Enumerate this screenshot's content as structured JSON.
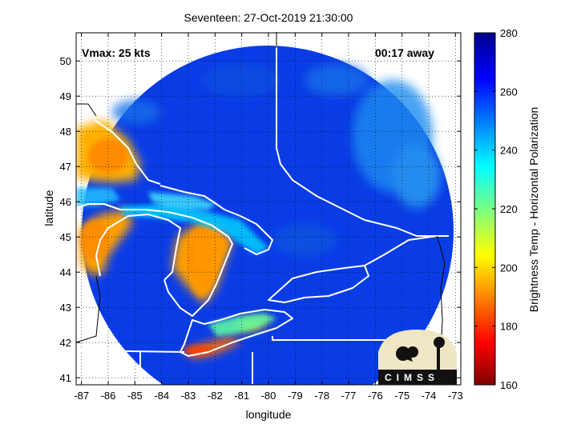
{
  "figure": {
    "title": "Seventeen: 27-Oct-2019 21:30:00",
    "xlabel": "longitude",
    "ylabel": "latitude",
    "colorbar_label": "Brightness Temp - Horizontal Polarization",
    "vmax_text": "Vmax: 25 kts",
    "away_text": "00:17 away",
    "logo_text": "CIMSS"
  },
  "chart_data": {
    "type": "heatmap",
    "title": "Seventeen: 27-Oct-2019 21:30:00",
    "xlabel": "longitude",
    "ylabel": "latitude",
    "xlim": [
      -87.2,
      -72.8
    ],
    "ylim": [
      40.8,
      50.8
    ],
    "xticks": [
      -87,
      -86,
      -85,
      -84,
      -83,
      -82,
      -81,
      -80,
      -79,
      -78,
      -77,
      -76,
      -75,
      -74,
      -73
    ],
    "yticks": [
      41,
      42,
      43,
      44,
      45,
      46,
      47,
      48,
      49,
      50
    ],
    "grid": true,
    "colorbar": {
      "label": "Brightness Temp - Horizontal Polarization",
      "range": [
        160,
        280
      ],
      "ticks": [
        160,
        180,
        200,
        220,
        240,
        260,
        280
      ],
      "colormap": [
        "#7f0000",
        "#ff0000",
        "#ffff00",
        "#00ffff",
        "#0000ff",
        "#00008f"
      ]
    },
    "annotations": [
      "Vmax: 25 kts",
      "00:17 away"
    ]
  }
}
